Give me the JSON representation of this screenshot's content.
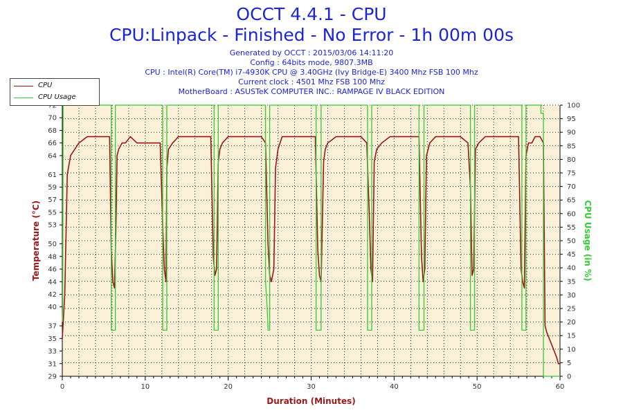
{
  "header": {
    "title": "OCCT 4.4.1 - CPU",
    "subtitle": "CPU:Linpack - Finished - No Error - 1h 00m 00s",
    "info": [
      "Generated by OCCT : 2015/03/06 14:11:20",
      "Config : 64bits mode, 9807.3MB",
      "CPU : Intel(R) Core(TM) i7-4930K CPU @ 3.40GHz (Ivy Bridge-E) 3400 Mhz FSB 100 Mhz",
      "Current clock : 4501 Mhz FSB 100 Mhz",
      "MotherBoard : ASUSTeK COMPUTER INC.: RAMPAGE IV BLACK EDITION"
    ]
  },
  "colors": {
    "title": "#1b24d9",
    "temp_axis": "#a01818",
    "usage_axis": "#33cc33",
    "temperature_line": "#9b1515",
    "usage_line": "#33cc33",
    "plot_bg": "#fbf0d8"
  },
  "chart_data": {
    "type": "line",
    "title": "OCCT 4.4.1 - CPU",
    "xlabel": "Duration (Minutes)",
    "ylabel_left": "Temperature (°C)",
    "ylabel_right": "CPU Usage (in %)",
    "xlim": [
      0,
      60
    ],
    "ylim_left": [
      29,
      72
    ],
    "ylim_right": [
      0,
      100
    ],
    "x_ticks": [
      0,
      10,
      20,
      30,
      40,
      50,
      60
    ],
    "y_ticks_left": [
      29,
      31,
      33,
      35,
      37,
      40,
      42,
      44,
      46,
      48,
      50,
      53,
      55,
      57,
      59,
      61,
      64,
      66,
      68,
      70,
      72
    ],
    "y_ticks_right": [
      0,
      5,
      10,
      15,
      20,
      25,
      30,
      35,
      40,
      45,
      50,
      55,
      60,
      65,
      70,
      75,
      80,
      85,
      90,
      95,
      100
    ],
    "grid": true,
    "legend_position": "top-left",
    "series": [
      {
        "name": "CPU",
        "axis": "left",
        "x": [
          0.0,
          0.3,
          0.6,
          1.0,
          1.5,
          2.0,
          3.0,
          4.0,
          5.0,
          5.7,
          5.9,
          6.1,
          6.3,
          6.5,
          6.6,
          6.8,
          7.2,
          7.6,
          8.2,
          9.0,
          10.0,
          11.0,
          11.8,
          12.1,
          12.3,
          12.5,
          12.6,
          12.8,
          13.3,
          14.0,
          15.0,
          16.0,
          17.0,
          17.9,
          18.2,
          18.4,
          18.6,
          18.8,
          19.0,
          19.3,
          20.0,
          21.0,
          22.0,
          23.0,
          24.0,
          24.5,
          24.8,
          25.0,
          25.2,
          25.5,
          25.7,
          26.0,
          26.5,
          27.5,
          28.5,
          29.5,
          30.5,
          30.8,
          31.0,
          31.2,
          31.5,
          31.7,
          32.0,
          33.0,
          34.0,
          35.0,
          36.0,
          36.7,
          37.0,
          37.2,
          37.4,
          37.6,
          37.9,
          38.5,
          39.5,
          40.5,
          41.5,
          42.5,
          43.0,
          43.3,
          43.5,
          43.7,
          43.9,
          44.3,
          45.0,
          46.0,
          47.0,
          48.0,
          48.9,
          49.2,
          49.4,
          49.6,
          49.8,
          50.2,
          51.0,
          52.0,
          53.0,
          54.0,
          55.0,
          55.3,
          55.5,
          55.7,
          55.9,
          56.2,
          56.6,
          57.0,
          57.6,
          58.0,
          58.2,
          58.4,
          58.7,
          59.0,
          59.3,
          59.6,
          59.8,
          60.0
        ],
        "values": [
          35,
          42,
          61,
          64,
          65,
          66,
          67,
          67,
          67,
          67,
          49,
          44,
          43,
          55,
          64,
          65,
          66,
          66,
          67,
          66,
          66,
          66,
          66,
          53,
          46,
          44,
          62,
          65,
          66,
          67,
          67,
          67,
          67,
          67,
          48,
          45,
          46,
          63,
          65,
          66,
          67,
          67,
          67,
          67,
          67,
          66,
          50,
          45,
          44,
          46,
          62,
          65,
          67,
          67,
          67,
          67,
          67,
          49,
          45,
          44,
          63,
          65,
          66,
          67,
          67,
          67,
          67,
          66,
          55,
          46,
          44,
          63,
          65,
          66,
          67,
          67,
          67,
          67,
          67,
          48,
          44,
          46,
          64,
          66,
          67,
          67,
          67,
          67,
          66,
          59,
          45,
          46,
          65,
          66,
          67,
          67,
          67,
          67,
          67,
          46,
          44,
          43,
          64,
          66,
          66,
          67,
          67,
          66,
          37,
          36,
          35,
          34,
          33,
          32,
          31,
          31
        ]
      },
      {
        "name": "CPU Usage",
        "axis": "right",
        "x": [
          0.0,
          0.05,
          0.1,
          0.2,
          5.9,
          5.9,
          6.4,
          6.4,
          12.1,
          12.1,
          12.6,
          12.6,
          18.3,
          18.3,
          18.8,
          18.8,
          24.5,
          24.5,
          24.7,
          24.8,
          25.0,
          25.0,
          30.6,
          30.6,
          31.2,
          31.2,
          36.8,
          36.8,
          37.3,
          37.3,
          43.0,
          43.0,
          43.6,
          43.6,
          49.2,
          49.2,
          49.7,
          49.7,
          55.4,
          55.4,
          55.9,
          55.9,
          57.7,
          57.7,
          58.0,
          58.0,
          60.0
        ],
        "values": [
          20,
          25,
          100,
          100,
          100,
          17,
          17,
          100,
          100,
          17,
          17,
          100,
          100,
          17,
          17,
          100,
          100,
          35,
          25,
          17,
          17,
          100,
          100,
          17,
          17,
          100,
          100,
          17,
          17,
          100,
          100,
          17,
          17,
          100,
          100,
          17,
          17,
          100,
          100,
          17,
          17,
          100,
          100,
          97,
          97,
          0,
          0
        ]
      }
    ]
  },
  "legend": {
    "items": [
      "CPU",
      "CPU Usage"
    ]
  }
}
